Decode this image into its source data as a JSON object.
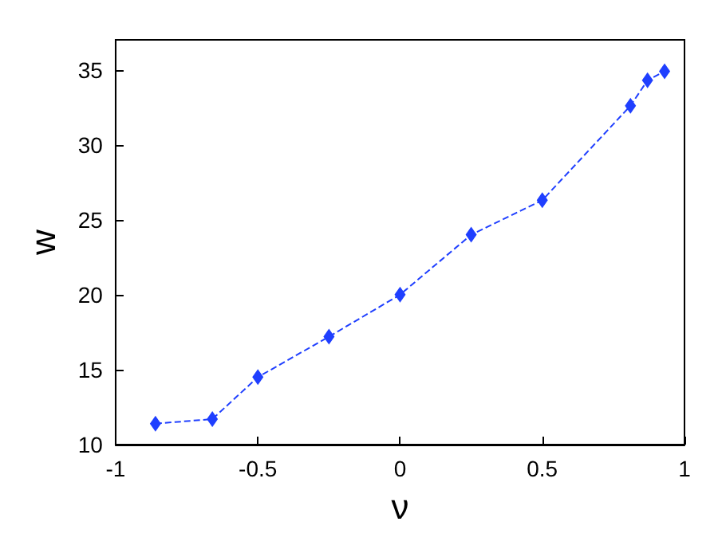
{
  "chart_data": {
    "type": "line",
    "xlabel": "ν",
    "ylabel": "w",
    "x": [
      -0.86,
      -0.66,
      -0.5,
      -0.25,
      0,
      0.25,
      0.5,
      0.81,
      0.87,
      0.93
    ],
    "series": [
      {
        "color": "#1f3fff",
        "values": [
          11.4,
          11.7,
          14.5,
          17.2,
          20,
          24,
          26.3,
          32.6,
          34.3,
          34.9
        ]
      }
    ],
    "xlim": [
      -1,
      1
    ],
    "xticks": [
      -1,
      -0.5,
      0,
      0.5,
      1
    ],
    "ylim": [
      10,
      37
    ],
    "yticks": [
      10,
      15,
      20,
      25,
      30,
      35
    ],
    "marker": "diamond",
    "line_style": "dashed",
    "grid": false
  }
}
